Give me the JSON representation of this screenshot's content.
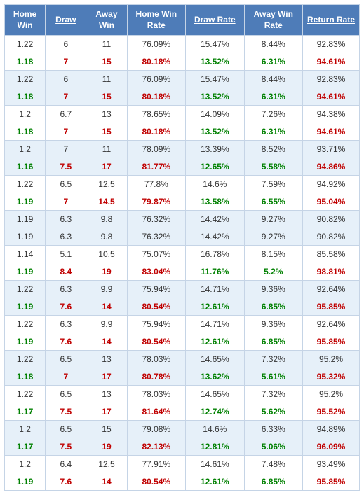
{
  "table": {
    "type": "table",
    "header_bg": "#4e7cb8",
    "header_fg": "#ffffff",
    "row_bg": "#ffffff",
    "alt_row_bg": "#e6f0f9",
    "border_color": "#c5d4e6",
    "text_color": "#333333",
    "hl_odds_first_color": "#008000",
    "hl_odds_color": "#c00000",
    "hl_rate_first_color": "#c00000",
    "hl_rate_color": "#008000",
    "hl_return_color": "#c00000",
    "font_size": 12,
    "columns": [
      {
        "key": "home_win",
        "label": "Home Win",
        "kind": "odds"
      },
      {
        "key": "draw",
        "label": "Draw",
        "kind": "odds"
      },
      {
        "key": "away_win",
        "label": "Away Win",
        "kind": "odds"
      },
      {
        "key": "home_win_rate",
        "label": "Home Win Rate",
        "kind": "rate"
      },
      {
        "key": "draw_rate",
        "label": "Draw Rate",
        "kind": "rate"
      },
      {
        "key": "away_win_rate",
        "label": "Away Win Rate",
        "kind": "rate"
      },
      {
        "key": "return_rate",
        "label": "Return Rate",
        "kind": "ret"
      }
    ],
    "rows": [
      {
        "alt": false,
        "hl": false,
        "cells": [
          "1.22",
          "6",
          "11",
          "76.09%",
          "15.47%",
          "8.44%",
          "92.83%"
        ]
      },
      {
        "alt": false,
        "hl": true,
        "cells": [
          "1.18",
          "7",
          "15",
          "80.18%",
          "13.52%",
          "6.31%",
          "94.61%"
        ]
      },
      {
        "alt": true,
        "hl": false,
        "cells": [
          "1.22",
          "6",
          "11",
          "76.09%",
          "15.47%",
          "8.44%",
          "92.83%"
        ]
      },
      {
        "alt": true,
        "hl": true,
        "cells": [
          "1.18",
          "7",
          "15",
          "80.18%",
          "13.52%",
          "6.31%",
          "94.61%"
        ]
      },
      {
        "alt": false,
        "hl": false,
        "cells": [
          "1.2",
          "6.7",
          "13",
          "78.65%",
          "14.09%",
          "7.26%",
          "94.38%"
        ]
      },
      {
        "alt": false,
        "hl": true,
        "cells": [
          "1.18",
          "7",
          "15",
          "80.18%",
          "13.52%",
          "6.31%",
          "94.61%"
        ]
      },
      {
        "alt": true,
        "hl": false,
        "cells": [
          "1.2",
          "7",
          "11",
          "78.09%",
          "13.39%",
          "8.52%",
          "93.71%"
        ]
      },
      {
        "alt": true,
        "hl": true,
        "cells": [
          "1.16",
          "7.5",
          "17",
          "81.77%",
          "12.65%",
          "5.58%",
          "94.86%"
        ]
      },
      {
        "alt": false,
        "hl": false,
        "cells": [
          "1.22",
          "6.5",
          "12.5",
          "77.8%",
          "14.6%",
          "7.59%",
          "94.92%"
        ]
      },
      {
        "alt": false,
        "hl": true,
        "cells": [
          "1.19",
          "7",
          "14.5",
          "79.87%",
          "13.58%",
          "6.55%",
          "95.04%"
        ]
      },
      {
        "alt": true,
        "hl": false,
        "cells": [
          "1.19",
          "6.3",
          "9.8",
          "76.32%",
          "14.42%",
          "9.27%",
          "90.82%"
        ]
      },
      {
        "alt": true,
        "hl": false,
        "cells": [
          "1.19",
          "6.3",
          "9.8",
          "76.32%",
          "14.42%",
          "9.27%",
          "90.82%"
        ]
      },
      {
        "alt": false,
        "hl": false,
        "cells": [
          "1.14",
          "5.1",
          "10.5",
          "75.07%",
          "16.78%",
          "8.15%",
          "85.58%"
        ]
      },
      {
        "alt": false,
        "hl": true,
        "cells": [
          "1.19",
          "8.4",
          "19",
          "83.04%",
          "11.76%",
          "5.2%",
          "98.81%"
        ]
      },
      {
        "alt": true,
        "hl": false,
        "cells": [
          "1.22",
          "6.3",
          "9.9",
          "75.94%",
          "14.71%",
          "9.36%",
          "92.64%"
        ]
      },
      {
        "alt": true,
        "hl": true,
        "cells": [
          "1.19",
          "7.6",
          "14",
          "80.54%",
          "12.61%",
          "6.85%",
          "95.85%"
        ]
      },
      {
        "alt": false,
        "hl": false,
        "cells": [
          "1.22",
          "6.3",
          "9.9",
          "75.94%",
          "14.71%",
          "9.36%",
          "92.64%"
        ]
      },
      {
        "alt": false,
        "hl": true,
        "cells": [
          "1.19",
          "7.6",
          "14",
          "80.54%",
          "12.61%",
          "6.85%",
          "95.85%"
        ]
      },
      {
        "alt": true,
        "hl": false,
        "cells": [
          "1.22",
          "6.5",
          "13",
          "78.03%",
          "14.65%",
          "7.32%",
          "95.2%"
        ]
      },
      {
        "alt": true,
        "hl": true,
        "cells": [
          "1.18",
          "7",
          "17",
          "80.78%",
          "13.62%",
          "5.61%",
          "95.32%"
        ]
      },
      {
        "alt": false,
        "hl": false,
        "cells": [
          "1.22",
          "6.5",
          "13",
          "78.03%",
          "14.65%",
          "7.32%",
          "95.2%"
        ]
      },
      {
        "alt": false,
        "hl": true,
        "cells": [
          "1.17",
          "7.5",
          "17",
          "81.64%",
          "12.74%",
          "5.62%",
          "95.52%"
        ]
      },
      {
        "alt": true,
        "hl": false,
        "cells": [
          "1.2",
          "6.5",
          "15",
          "79.08%",
          "14.6%",
          "6.33%",
          "94.89%"
        ]
      },
      {
        "alt": true,
        "hl": true,
        "cells": [
          "1.17",
          "7.5",
          "19",
          "82.13%",
          "12.81%",
          "5.06%",
          "96.09%"
        ]
      },
      {
        "alt": false,
        "hl": false,
        "cells": [
          "1.2",
          "6.4",
          "12.5",
          "77.91%",
          "14.61%",
          "7.48%",
          "93.49%"
        ]
      },
      {
        "alt": false,
        "hl": true,
        "cells": [
          "1.19",
          "7.6",
          "14",
          "80.54%",
          "12.61%",
          "6.85%",
          "95.85%"
        ]
      }
    ]
  }
}
